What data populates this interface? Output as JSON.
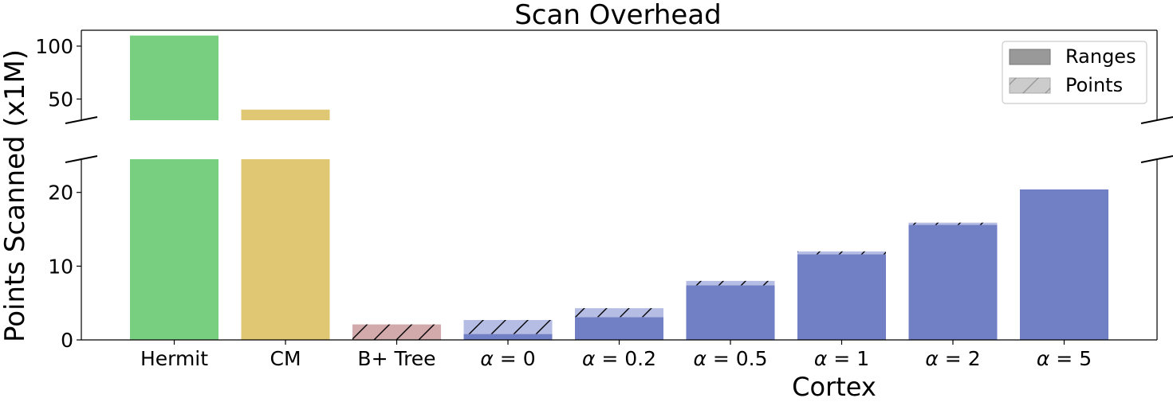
{
  "chart_data": {
    "type": "bar",
    "title": "Scan Overhead",
    "xlabel": "Cortex",
    "ylabel": "Points Scanned (x1M)",
    "categories": [
      "Hermit",
      "CM",
      "B+ Tree",
      "α = 0",
      "α = 0.2",
      "α = 0.5",
      "α = 1",
      "α = 2",
      "α = 5"
    ],
    "category_tex": [
      {
        "text": "Hermit"
      },
      {
        "text": "CM"
      },
      {
        "text": "B+ Tree"
      },
      {
        "greek": "α",
        "rest": " = 0"
      },
      {
        "greek": "α",
        "rest": " = 0.2"
      },
      {
        "greek": "α",
        "rest": " = 0.5"
      },
      {
        "greek": "α",
        "rest": " = 1"
      },
      {
        "greek": "α",
        "rest": " = 2"
      },
      {
        "greek": "α",
        "rest": " = 5"
      }
    ],
    "series": [
      {
        "name": "Ranges",
        "values": [
          110,
          40,
          0,
          0.8,
          3.1,
          7.4,
          11.6,
          15.6,
          20.4
        ]
      },
      {
        "name": "Points",
        "values": [
          0,
          0,
          2.1,
          1.9,
          1.2,
          0.6,
          0.4,
          0.3,
          0.0
        ]
      }
    ],
    "colors": [
      "#78cf80",
      "#dfc773",
      "#d3aaac",
      "#717fc4",
      "#717fc4",
      "#717fc4",
      "#717fc4",
      "#717fc4",
      "#717fc4"
    ],
    "points_colors": [
      "#78cf80",
      "#dfc773",
      "#d3aaac",
      "#b6bde4",
      "#b6bde4",
      "#b6bde4",
      "#b6bde4",
      "#b6bde4",
      "#b6bde4"
    ],
    "broken_axis": true,
    "upper_ylim": [
      30,
      115
    ],
    "upper_yticks": [
      50,
      100
    ],
    "lower_ylim": [
      0,
      24.5
    ],
    "lower_yticks": [
      0,
      10,
      20
    ],
    "legend": {
      "placement": "top-right",
      "entries": [
        {
          "label": "Ranges",
          "color": "#999999",
          "hatch": false
        },
        {
          "label": "Points",
          "color": "#cccccc",
          "hatch": true
        }
      ]
    },
    "grid": false
  }
}
